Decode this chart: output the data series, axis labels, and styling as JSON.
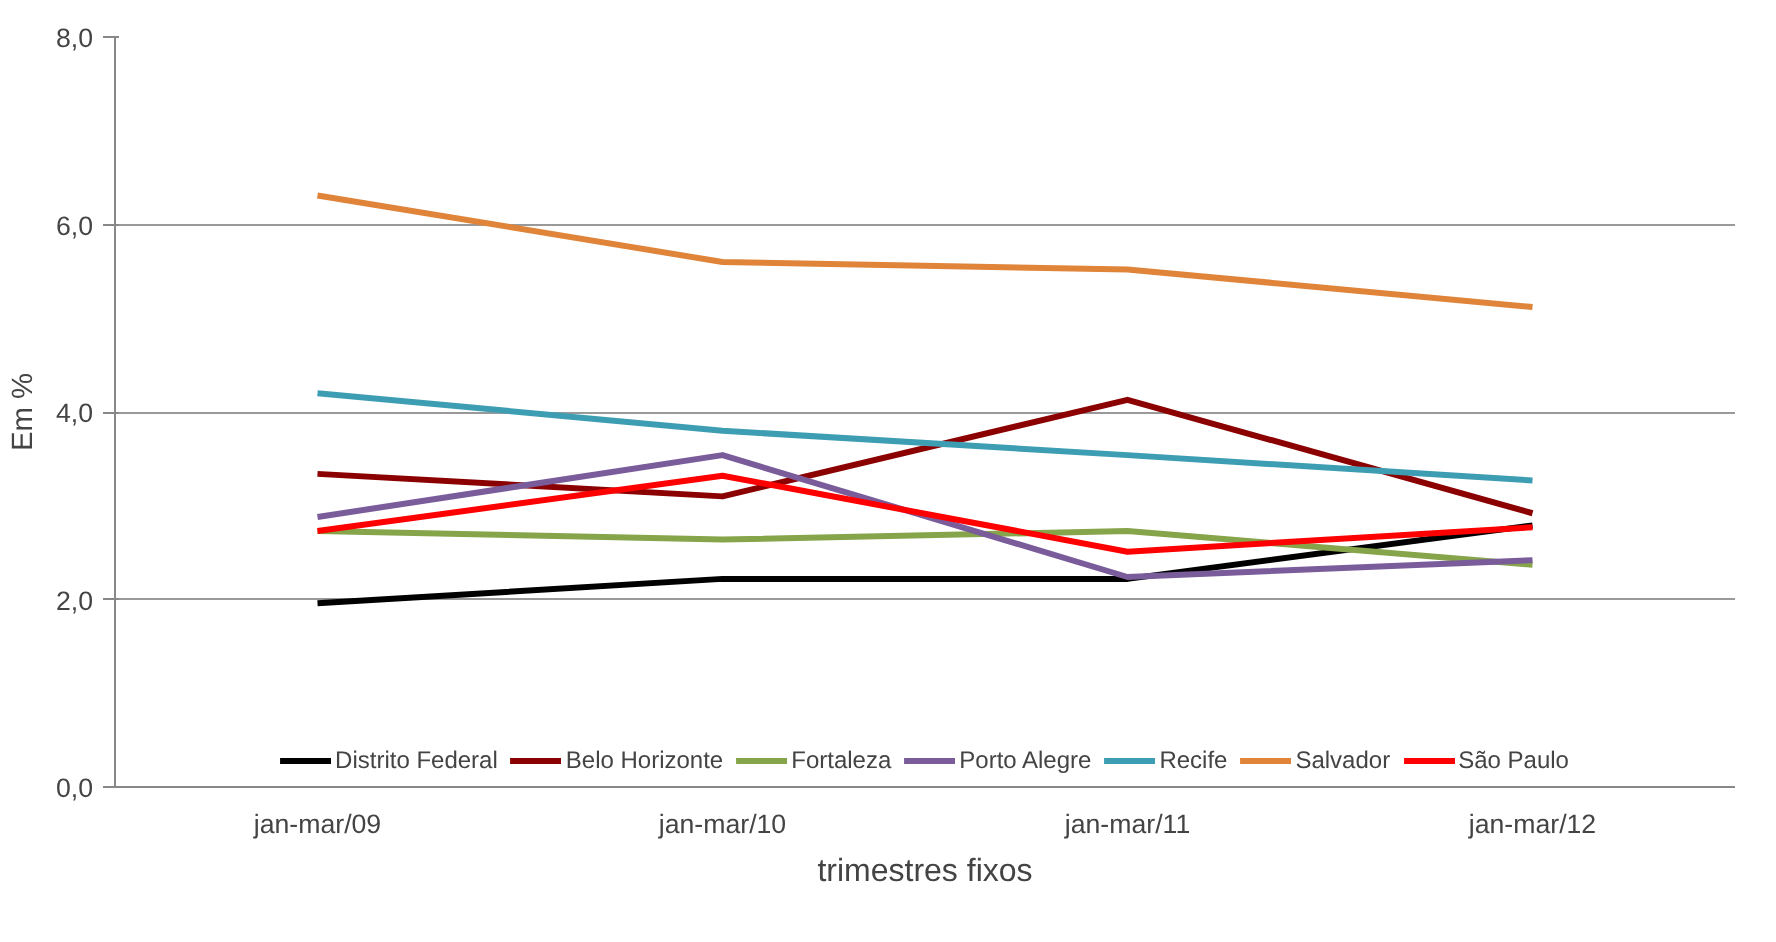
{
  "chart_data": {
    "type": "line",
    "xlabel": "trimestres fixos",
    "ylabel": "Em %",
    "categories": [
      "jan-mar/09",
      "jan-mar/10",
      "jan-mar/11",
      "jan-mar/12"
    ],
    "ylim": [
      0,
      8
    ],
    "yticks": [
      {
        "value": 0,
        "label": "0,0"
      },
      {
        "value": 2,
        "label": "2,0"
      },
      {
        "value": 4,
        "label": "4,0"
      },
      {
        "value": 6,
        "label": "6,0"
      },
      {
        "value": 8,
        "label": "8,0"
      }
    ],
    "grid": "y",
    "legend": "bottom",
    "marker": "none",
    "line_style": "solid",
    "series": [
      {
        "name": "Distrito Federal",
        "color": "#000000",
        "values": [
          1.96,
          2.22,
          2.22,
          2.79
        ]
      },
      {
        "name": "Belo Horizonte",
        "color": "#8b0000",
        "values": [
          3.34,
          3.1,
          4.13,
          2.92
        ]
      },
      {
        "name": "Fortaleza",
        "color": "#86a44a",
        "values": [
          2.73,
          2.64,
          2.73,
          2.37
        ]
      },
      {
        "name": "Porto Alegre",
        "color": "#7a5c9b",
        "values": [
          2.88,
          3.54,
          2.24,
          2.42
        ]
      },
      {
        "name": "Recife",
        "color": "#3d9db3",
        "values": [
          4.2,
          3.8,
          3.54,
          3.27
        ]
      },
      {
        "name": "Salvador",
        "color": "#e0843a",
        "values": [
          6.31,
          5.6,
          5.52,
          5.12
        ]
      },
      {
        "name": "São Paulo",
        "color": "#ff0000",
        "values": [
          2.73,
          3.32,
          2.51,
          2.77
        ]
      }
    ]
  }
}
